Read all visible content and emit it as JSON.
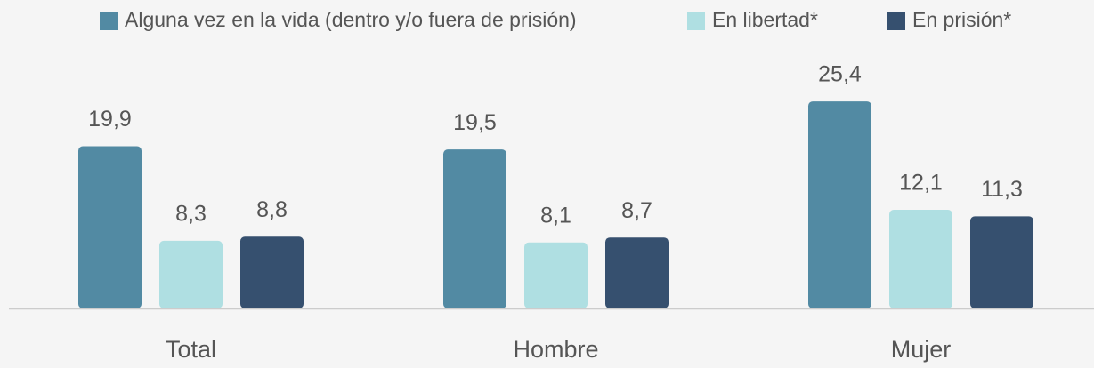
{
  "chart_data": {
    "type": "bar",
    "categories": [
      "Total",
      "Hombre",
      "Mujer"
    ],
    "series": [
      {
        "name": "Alguna vez en la vida (dentro y/o fuera de prisión)",
        "color": "#528aa3",
        "values": [
          19.9,
          19.5,
          25.4
        ],
        "value_labels": [
          "19,9",
          "19,5",
          "25,4"
        ]
      },
      {
        "name": "En libertad*",
        "color": "#afdfe2",
        "values": [
          8.3,
          8.1,
          12.1
        ],
        "value_labels": [
          "8,3",
          "8,1",
          "12,1"
        ]
      },
      {
        "name": "En prisión*",
        "color": "#36506f",
        "values": [
          8.8,
          8.7,
          11.3
        ],
        "value_labels": [
          "8,8",
          "8,7",
          "11,3"
        ]
      }
    ]
  }
}
